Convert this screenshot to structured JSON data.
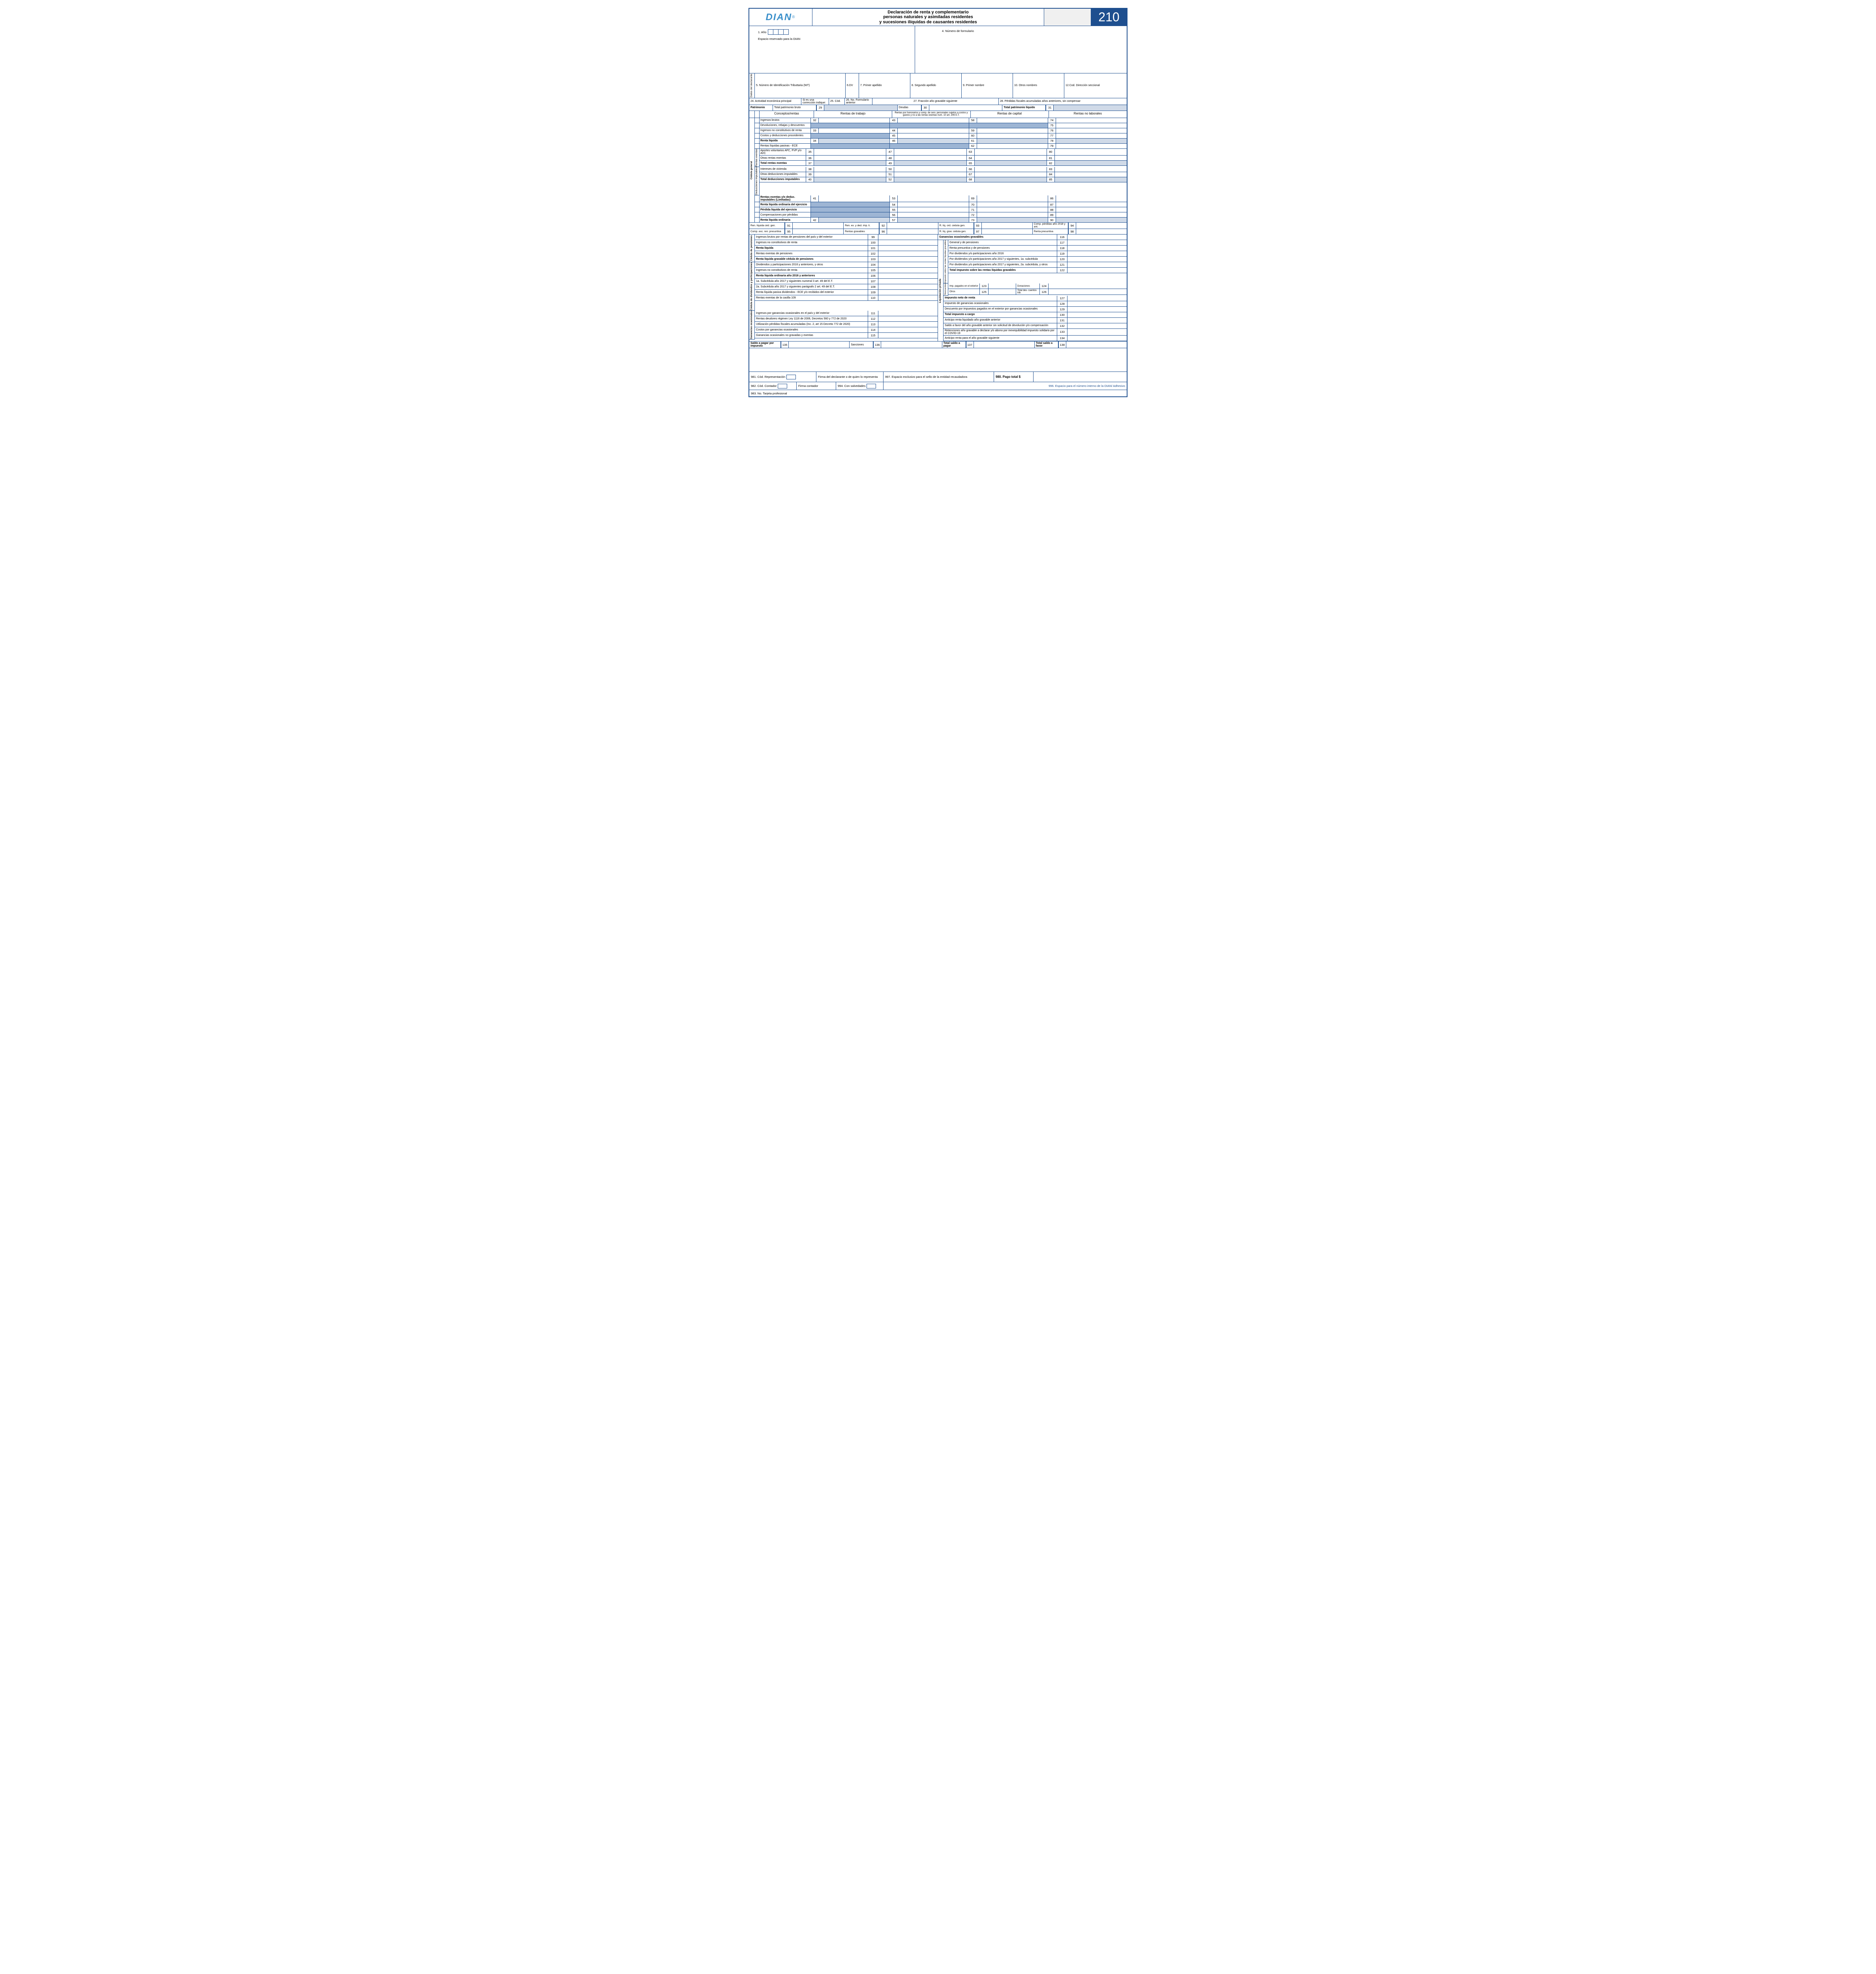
{
  "colors": {
    "primary": "#1e4f8f",
    "logo": "#3a8fca",
    "shade1": "#d0dae8",
    "shade2": "#9db5d4"
  },
  "header": {
    "logo_text": "DIAN",
    "title_l1": "Declaración de renta y complementario",
    "title_l2": "personas naturales y asimiladas residentes",
    "title_l3": "y sucesiones ilíquidas de causantes residentes",
    "form_number": "210"
  },
  "top": {
    "f1": "1. Año",
    "reserved": "Espacio reservado para la DIAN",
    "f4": "4. Número de formulario"
  },
  "declarante": {
    "side": "Datos del declarante",
    "f5": "5. Número de Identificación Tributtaria (NIT)",
    "f6": "6.DV",
    "f7": "7. Primer apellido",
    "f8": "8. Segundo apellido",
    "f9": "9. Primer nombre",
    "f10": "10. Otros nombres",
    "f12": "12.Cod. Dirección seccional",
    "f24": "24. Actividad económica principal",
    "correc": "Si es una corrección indique:",
    "f25": "25. Cód.",
    "f26": "26. No. Formulario anterior",
    "f27": "27. Fracción año gravable siguiente",
    "f28": "28. Pérdidas fiscales acumuladas años anteriores, sin compensar"
  },
  "patrimonio": {
    "label": "Patrimonio",
    "bruto": "Total patrimonio bruto",
    "n29": "29",
    "deudas": "Deudas",
    "n30": "30",
    "liquido": "Total patrimonio líquido",
    "n31": "31"
  },
  "col_headers": {
    "conceptos": "Conceptos/rentas",
    "trabajo": "Rentas de trabajo",
    "honorarios": "Rentas por honorarios y comp. de serv. personales sujetos a costos y gastos y no a las rentas exentas num. 10 art. 206 E.T.",
    "capital": "Rentas de capital",
    "nolaborales": "Rentas no laborales"
  },
  "cedula_side": "Cédula general",
  "sub_sides": {
    "exentas": "Rentas exentas",
    "deducciones": "Deducciones imputables"
  },
  "concepts": [
    {
      "name": "Ingresos brutos",
      "bold": false,
      "cols": [
        {
          "n": "32",
          "s": 0
        },
        {
          "n": "43",
          "s": 0
        },
        {
          "n": "58",
          "s": 0
        },
        {
          "n": "74",
          "s": 0
        }
      ],
      "sub": ""
    },
    {
      "name": "Devoluciones, rebajas y descuentos",
      "bold": false,
      "cols": [
        {
          "n": "",
          "s": 2
        },
        {
          "n": "",
          "s": 2
        },
        {
          "n": "",
          "s": 2
        },
        {
          "n": "75",
          "s": 0
        }
      ],
      "sub": ""
    },
    {
      "name": "Ingresos no constitutivos de renta",
      "bold": false,
      "cols": [
        {
          "n": "33",
          "s": 0
        },
        {
          "n": "44",
          "s": 0
        },
        {
          "n": "59",
          "s": 0
        },
        {
          "n": "76",
          "s": 0
        }
      ],
      "sub": ""
    },
    {
      "name": "Costos y deducciones procedentes",
      "bold": false,
      "cols": [
        {
          "n": "",
          "s": 2
        },
        {
          "n": "45",
          "s": 0
        },
        {
          "n": "60",
          "s": 0
        },
        {
          "n": "77",
          "s": 0
        }
      ],
      "sub": ""
    },
    {
      "name": "Renta líquida",
      "bold": true,
      "cols": [
        {
          "n": "34",
          "s": 1
        },
        {
          "n": "46",
          "s": 1
        },
        {
          "n": "61",
          "s": 1
        },
        {
          "n": "78",
          "s": 1
        }
      ],
      "sub": ""
    },
    {
      "name": "Rentas líquidas pasivas - ECE",
      "bold": false,
      "cols": [
        {
          "n": "",
          "s": 2
        },
        {
          "n": "",
          "s": 2
        },
        {
          "n": "62",
          "s": 0
        },
        {
          "n": "79",
          "s": 0
        }
      ],
      "sub": ""
    },
    {
      "name": "Aportes voluntarios AFC, FVP y/o AVC",
      "bold": false,
      "cols": [
        {
          "n": "35",
          "s": 0
        },
        {
          "n": "47",
          "s": 0
        },
        {
          "n": "63",
          "s": 0
        },
        {
          "n": "80",
          "s": 0
        }
      ],
      "sub": "e"
    },
    {
      "name": "Otras rentas exentas",
      "bold": false,
      "cols": [
        {
          "n": "36",
          "s": 0
        },
        {
          "n": "48",
          "s": 0
        },
        {
          "n": "64",
          "s": 0
        },
        {
          "n": "81",
          "s": 0
        }
      ],
      "sub": "e"
    },
    {
      "name": "Total rentas exentas",
      "bold": true,
      "cols": [
        {
          "n": "37",
          "s": 1
        },
        {
          "n": "49",
          "s": 1
        },
        {
          "n": "65",
          "s": 1
        },
        {
          "n": "82",
          "s": 1
        }
      ],
      "sub": "e"
    },
    {
      "name": "Intereses de vivienda",
      "bold": false,
      "cols": [
        {
          "n": "38",
          "s": 0
        },
        {
          "n": "50",
          "s": 0
        },
        {
          "n": "66",
          "s": 0
        },
        {
          "n": "83",
          "s": 0
        }
      ],
      "sub": "d"
    },
    {
      "name": "Otras deducciones imputables",
      "bold": false,
      "cols": [
        {
          "n": "39",
          "s": 0
        },
        {
          "n": "51",
          "s": 0
        },
        {
          "n": "67",
          "s": 0
        },
        {
          "n": "84",
          "s": 0
        }
      ],
      "sub": "d"
    },
    {
      "name": "Total deducciones imputables",
      "bold": true,
      "cols": [
        {
          "n": "40",
          "s": 1
        },
        {
          "n": "52",
          "s": 1
        },
        {
          "n": "68",
          "s": 1
        },
        {
          "n": "85",
          "s": 1
        }
      ],
      "sub": "d"
    },
    {
      "name": "Rentas exentas y/o deduc. imputables (Limitadas)",
      "bold": true,
      "cols": [
        {
          "n": "41",
          "s": 0
        },
        {
          "n": "53",
          "s": 0
        },
        {
          "n": "69",
          "s": 0
        },
        {
          "n": "86",
          "s": 0
        }
      ],
      "sub": ""
    },
    {
      "name": "Renta líquida ordinaria del ejercicio",
      "bold": true,
      "cols": [
        {
          "n": "",
          "s": 2
        },
        {
          "n": "54",
          "s": 0
        },
        {
          "n": "70",
          "s": 0
        },
        {
          "n": "87",
          "s": 0
        }
      ],
      "sub": ""
    },
    {
      "name": "Pérdida líquida del ejercicio",
      "bold": true,
      "cols": [
        {
          "n": "",
          "s": 2
        },
        {
          "n": "55",
          "s": 0
        },
        {
          "n": "71",
          "s": 0
        },
        {
          "n": "88",
          "s": 0
        }
      ],
      "sub": ""
    },
    {
      "name": "Compensaciones por pérdidas",
      "bold": false,
      "cols": [
        {
          "n": "",
          "s": 2
        },
        {
          "n": "56",
          "s": 0
        },
        {
          "n": "72",
          "s": 0
        },
        {
          "n": "89",
          "s": 0
        }
      ],
      "sub": ""
    },
    {
      "name": "Renta líquida ordinaria",
      "bold": true,
      "cols": [
        {
          "n": "42",
          "s": 1
        },
        {
          "n": "57",
          "s": 1
        },
        {
          "n": "73",
          "s": 1
        },
        {
          "n": "90",
          "s": 1
        }
      ],
      "sub": ""
    }
  ],
  "summary_row1": [
    {
      "l": "Ren. líquida céd. gen.",
      "n": "91"
    },
    {
      "l": "Ren. ex. y ded. imp. li.",
      "n": "92"
    },
    {
      "l": "R. líq. ord. cédula gen.",
      "n": "93"
    },
    {
      "l": "Comp. pérdidas año 2018 y ant.",
      "n": "94"
    }
  ],
  "summary_row2": [
    {
      "l": "Comp. exc. ren. presuntiva",
      "n": "95"
    },
    {
      "l": "Rentas gravables",
      "n": "96"
    },
    {
      "l": "R. líq. grav. cédula gen.",
      "n": "97"
    },
    {
      "l": "Renta presuntiva",
      "n": "98"
    }
  ],
  "left_sections": [
    {
      "side": "Cédula de pensiones",
      "rows": [
        {
          "l": "Ingresos brutos por rentas de pensiones del país y del exterior",
          "n": "99",
          "b": false
        },
        {
          "l": "Ingresos no constitutivos de renta",
          "n": "100",
          "b": false
        },
        {
          "l": "Renta líquida",
          "n": "101",
          "b": true
        },
        {
          "l": "Rentas exentas de pensiones",
          "n": "102",
          "b": false
        },
        {
          "l": "Renta líquida gravable cédula de pensiones",
          "n": "103",
          "b": true
        }
      ]
    },
    {
      "side": "Cédula de dividendos y participaciones",
      "rows": [
        {
          "l": "Dividendos y participaciones 2016 y anteriores, y otros",
          "n": "104",
          "b": false
        },
        {
          "l": "Ingresos no constitutivos de renta",
          "n": "105",
          "b": false
        },
        {
          "l": "Renta líquida ordinaria año 2016 y anteriores",
          "n": "106",
          "b": true
        },
        {
          "l": "1a. Subcédula año 2017 y siguientes numeral 3 art. 49 del E.T.",
          "n": "107",
          "b": false
        },
        {
          "l": "2a. Subcédula año 2017 y siguientes parágrafo 2 art. 49 del E.T.",
          "n": "108",
          "b": false
        },
        {
          "l": "Renta líquida pasiva dividendos - ECE y/o recibidos del exterior",
          "n": "109",
          "b": false
        },
        {
          "l": "Rentas exentas de la casilla 109",
          "n": "110",
          "b": false
        }
      ]
    },
    {
      "side": "Ganancias ocasionales",
      "rows": [
        {
          "l": "Ingresos por ganancias ocasionales en el país y del exterior",
          "n": "111",
          "b": false
        },
        {
          "l": "Rentas deudores régimen Ley 1116 de 2006, Decretos 560 y 772 de 2020",
          "n": "112",
          "b": false
        },
        {
          "l": "Utilización pérdidas fiscales acumuladas (Inc. 2, art 15 Decreto 772 de 2020)",
          "n": "113",
          "b": false
        },
        {
          "l": "Costos por ganancias ocasionales",
          "n": "114",
          "b": false
        },
        {
          "l": "Ganancias ocasionales no gravadas y exentas",
          "n": "115",
          "b": false
        }
      ]
    }
  ],
  "right_top": {
    "l": "Ganancias ocasionales gravables",
    "n": "116",
    "b": true
  },
  "right_side": "Liquidación privada",
  "right_sub1": "Impuesto sobre las rentas líquidas gravables",
  "right_sub2": "Descuentos",
  "right_rows": [
    {
      "l": "General y de pensiones",
      "n": "117",
      "sub": "i"
    },
    {
      "l": "Renta presuntiva y de pensiones",
      "n": "118",
      "sub": "i"
    },
    {
      "l": "Por dividendos y/o participaciones año 2016",
      "n": "119",
      "sub": "i"
    },
    {
      "l": "Por dividendos y/o participaciones año 2017 y siguientes, 1a. subcédula",
      "n": "120",
      "sub": "i"
    },
    {
      "l": "Por dividendos y/o participaciones año 2017 y siguientes, 2a. subcédula, y otros",
      "n": "121",
      "sub": "i"
    },
    {
      "l": "Total impuesto sobre las rentas líquidas gravables",
      "n": "122",
      "b": true,
      "sub": "i"
    }
  ],
  "desc_row": {
    "l1": "Imp. pagados en el exterior",
    "n1": "123",
    "l2": "Donaciones",
    "n2": "124"
  },
  "desc_row2": {
    "l1": "Otros",
    "n1": "125",
    "l2": "Total des- cuentos trib.",
    "n2": "126"
  },
  "right_rows2": [
    {
      "l": "Impuesto neto de renta",
      "n": "127",
      "b": true
    },
    {
      "l": "Impuesto de ganancias ocasionales",
      "n": "128"
    },
    {
      "l": "Descuento por impuestos pagados en el exterior por ganancias ocasionales",
      "n": "129"
    },
    {
      "l": "Total impuesto a cargo",
      "n": "130",
      "b": true
    },
    {
      "l": "Anticipo renta liquidado año gravable anterior",
      "n": "131"
    },
    {
      "l": "Saldo a favor del año gravable anterior sin solicitud de devolución y/o compensación",
      "n": "132"
    },
    {
      "l": "Retenciones año gravable a declarar y/o abono por inexequibilidad impuesto solidario por el COVID-19",
      "n": "133"
    },
    {
      "l": "Anticipo renta para el año gravable siguiente",
      "n": "134"
    }
  ],
  "totals": {
    "saldo_pagar_imp": "Saldo a pagar por impuesto",
    "n135": "135",
    "sanciones": "Sanciones",
    "n136": "136",
    "total_pagar": "Total saldo a pagar",
    "n137": "137",
    "total_favor": "Total saldo a favor",
    "n138": "138"
  },
  "footer": {
    "f981": "981. Cód. Representación",
    "firma_decl": "Firma del declarante o de quien lo representa",
    "f997": "997. Espacio exclusivo para el sello de la entidad recaudadora",
    "f980": "980.  Pago total $",
    "f982": "982. Cód. Contador",
    "firma_cont": "Firma contador",
    "f994": "994. Con salvedades",
    "f996": "996. Espacio para el número interno de la DIAN/ Adhesivo",
    "f983": "983. No. Tarjeta profesional"
  }
}
